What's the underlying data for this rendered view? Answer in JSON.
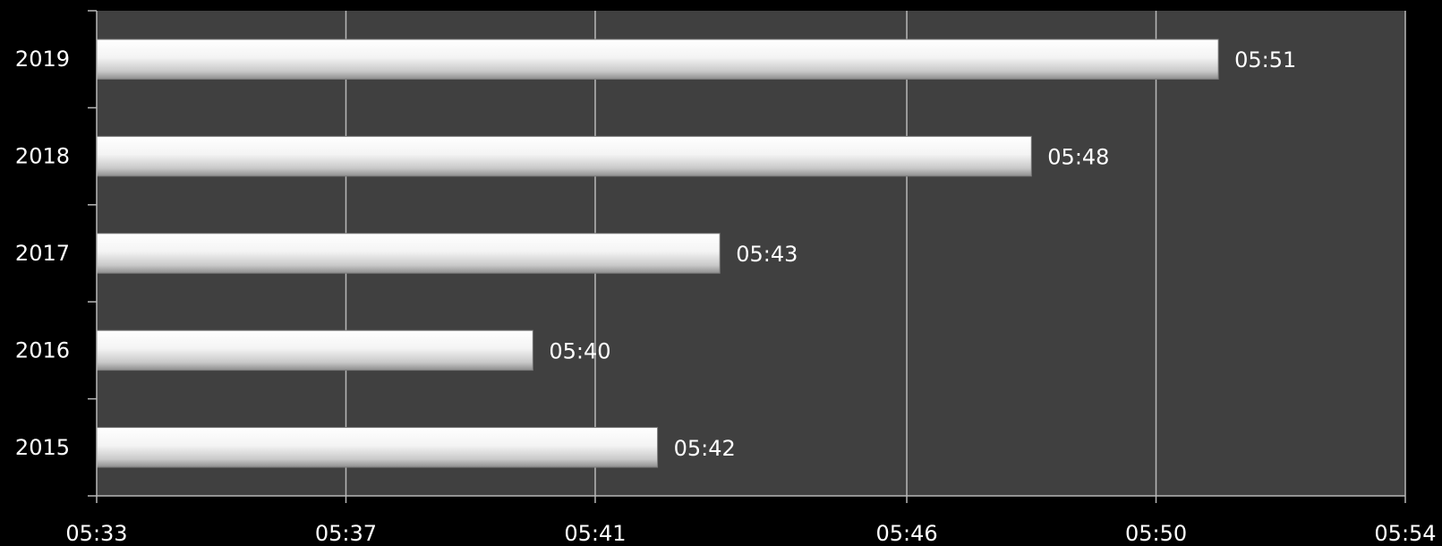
{
  "chart_data": {
    "type": "bar",
    "orientation": "horizontal",
    "title": "",
    "xlabel": "",
    "ylabel": "",
    "categories": [
      "2019",
      "2018",
      "2017",
      "2016",
      "2015"
    ],
    "values": [
      "05:51",
      "05:48",
      "05:43",
      "05:40",
      "05:42"
    ],
    "value_labels": [
      "05:51",
      "05:48",
      "05:43",
      "05:40",
      "05:42"
    ],
    "x_ticks": [
      "05:33",
      "05:37",
      "05:41",
      "05:46",
      "05:50",
      "05:54"
    ],
    "xlim": [
      "05:33",
      "05:54"
    ],
    "grid": true,
    "legend": "none"
  },
  "colors": {
    "background": "#000000",
    "plot_area": "#404040",
    "gridline": "#b8b8b8",
    "bar_fill": "#f2f2f2",
    "text": "#ffffff"
  }
}
